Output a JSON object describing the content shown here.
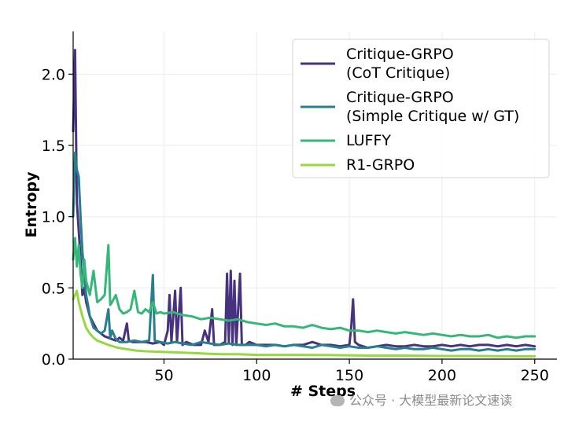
{
  "chart_data": {
    "type": "line",
    "xlabel": "# Steps",
    "ylabel": "Entropy",
    "xlim": [
      1,
      262
    ],
    "ylim": [
      0,
      2.3
    ],
    "xticks": [
      50,
      100,
      150,
      200,
      250
    ],
    "yticks": [
      0.0,
      0.5,
      1.0,
      1.5,
      2.0
    ],
    "xtick_labels": [
      "50",
      "100",
      "150",
      "200",
      "250"
    ],
    "ytick_labels": [
      "0.0",
      "0.5",
      "1.0",
      "1.5",
      "2.0"
    ],
    "grid": true,
    "legend_position": "top-right",
    "series": [
      {
        "name": "Critique-GRPO\n(CoT Critique)",
        "color": "#46327e",
        "points": [
          [
            1,
            1.6
          ],
          [
            2,
            2.17
          ],
          [
            3,
            1.1
          ],
          [
            4,
            0.9
          ],
          [
            5,
            0.7
          ],
          [
            6,
            0.45
          ],
          [
            7,
            0.5
          ],
          [
            8,
            0.4
          ],
          [
            9,
            0.35
          ],
          [
            10,
            0.3
          ],
          [
            12,
            0.25
          ],
          [
            14,
            0.2
          ],
          [
            16,
            0.18
          ],
          [
            18,
            0.16
          ],
          [
            20,
            0.15
          ],
          [
            22,
            0.14
          ],
          [
            24,
            0.13
          ],
          [
            26,
            0.15
          ],
          [
            28,
            0.13
          ],
          [
            30,
            0.25
          ],
          [
            31,
            0.13
          ],
          [
            33,
            0.12
          ],
          [
            36,
            0.12
          ],
          [
            40,
            0.12
          ],
          [
            44,
            0.11
          ],
          [
            48,
            0.12
          ],
          [
            50,
            0.1
          ],
          [
            52,
            0.2
          ],
          [
            53,
            0.45
          ],
          [
            54,
            0.12
          ],
          [
            56,
            0.48
          ],
          [
            57,
            0.12
          ],
          [
            59,
            0.5
          ],
          [
            60,
            0.1
          ],
          [
            62,
            0.12
          ],
          [
            66,
            0.1
          ],
          [
            70,
            0.1
          ],
          [
            72,
            0.2
          ],
          [
            74,
            0.12
          ],
          [
            76,
            0.35
          ],
          [
            77,
            0.1
          ],
          [
            80,
            0.1
          ],
          [
            83,
            0.12
          ],
          [
            84,
            0.6
          ],
          [
            85,
            0.12
          ],
          [
            86,
            0.62
          ],
          [
            87,
            0.1
          ],
          [
            88,
            0.55
          ],
          [
            89,
            0.1
          ],
          [
            91,
            0.6
          ],
          [
            92,
            0.1
          ],
          [
            94,
            0.1
          ],
          [
            96,
            0.12
          ],
          [
            100,
            0.1
          ],
          [
            105,
            0.1
          ],
          [
            110,
            0.1
          ],
          [
            115,
            0.09
          ],
          [
            120,
            0.1
          ],
          [
            125,
            0.1
          ],
          [
            130,
            0.12
          ],
          [
            135,
            0.1
          ],
          [
            140,
            0.1
          ],
          [
            145,
            0.09
          ],
          [
            150,
            0.1
          ],
          [
            151,
            0.22
          ],
          [
            152,
            0.42
          ],
          [
            153,
            0.12
          ],
          [
            155,
            0.1
          ],
          [
            160,
            0.08
          ],
          [
            165,
            0.09
          ],
          [
            170,
            0.1
          ],
          [
            175,
            0.09
          ],
          [
            180,
            0.09
          ],
          [
            185,
            0.1
          ],
          [
            190,
            0.09
          ],
          [
            195,
            0.09
          ],
          [
            200,
            0.1
          ],
          [
            205,
            0.09
          ],
          [
            210,
            0.1
          ],
          [
            215,
            0.09
          ],
          [
            220,
            0.1
          ],
          [
            225,
            0.1
          ],
          [
            230,
            0.09
          ],
          [
            235,
            0.1
          ],
          [
            240,
            0.09
          ],
          [
            245,
            0.1
          ],
          [
            250,
            0.09
          ]
        ]
      },
      {
        "name": "Critique-GRPO\n(Simple Critique w/ GT)",
        "color": "#277f8e",
        "points": [
          [
            1,
            1.0
          ],
          [
            2,
            1.45
          ],
          [
            3,
            1.33
          ],
          [
            4,
            1.28
          ],
          [
            5,
            1.0
          ],
          [
            6,
            0.75
          ],
          [
            7,
            0.6
          ],
          [
            8,
            0.45
          ],
          [
            9,
            0.38
          ],
          [
            10,
            0.3
          ],
          [
            12,
            0.22
          ],
          [
            14,
            0.2
          ],
          [
            16,
            0.18
          ],
          [
            18,
            0.2
          ],
          [
            20,
            0.35
          ],
          [
            21,
            0.15
          ],
          [
            22,
            0.2
          ],
          [
            24,
            0.14
          ],
          [
            26,
            0.12
          ],
          [
            30,
            0.12
          ],
          [
            34,
            0.13
          ],
          [
            38,
            0.12
          ],
          [
            42,
            0.13
          ],
          [
            44,
            0.59
          ],
          [
            45,
            0.13
          ],
          [
            48,
            0.12
          ],
          [
            52,
            0.11
          ],
          [
            56,
            0.12
          ],
          [
            60,
            0.11
          ],
          [
            65,
            0.1
          ],
          [
            70,
            0.12
          ],
          [
            75,
            0.11
          ],
          [
            80,
            0.1
          ],
          [
            85,
            0.11
          ],
          [
            90,
            0.1
          ],
          [
            95,
            0.1
          ],
          [
            100,
            0.1
          ],
          [
            105,
            0.09
          ],
          [
            110,
            0.1
          ],
          [
            115,
            0.09
          ],
          [
            120,
            0.1
          ],
          [
            125,
            0.09
          ],
          [
            130,
            0.08
          ],
          [
            135,
            0.1
          ],
          [
            140,
            0.09
          ],
          [
            145,
            0.08
          ],
          [
            150,
            0.09
          ],
          [
            155,
            0.08
          ],
          [
            160,
            0.08
          ],
          [
            165,
            0.09
          ],
          [
            170,
            0.08
          ],
          [
            175,
            0.07
          ],
          [
            180,
            0.08
          ],
          [
            185,
            0.07
          ],
          [
            190,
            0.07
          ],
          [
            195,
            0.08
          ],
          [
            200,
            0.07
          ],
          [
            205,
            0.06
          ],
          [
            210,
            0.07
          ],
          [
            215,
            0.07
          ],
          [
            220,
            0.06
          ],
          [
            225,
            0.07
          ],
          [
            230,
            0.06
          ],
          [
            235,
            0.07
          ],
          [
            240,
            0.06
          ],
          [
            245,
            0.07
          ],
          [
            250,
            0.07
          ]
        ]
      },
      {
        "name": "LUFFY",
        "color": "#35b779",
        "points": [
          [
            1,
            0.7
          ],
          [
            2,
            0.85
          ],
          [
            3,
            0.65
          ],
          [
            4,
            0.8
          ],
          [
            5,
            0.6
          ],
          [
            6,
            0.5
          ],
          [
            7,
            0.7
          ],
          [
            8,
            0.55
          ],
          [
            10,
            0.45
          ],
          [
            12,
            0.62
          ],
          [
            14,
            0.4
          ],
          [
            16,
            0.42
          ],
          [
            18,
            0.45
          ],
          [
            20,
            0.8
          ],
          [
            21,
            0.38
          ],
          [
            22,
            0.4
          ],
          [
            24,
            0.45
          ],
          [
            26,
            0.35
          ],
          [
            28,
            0.32
          ],
          [
            30,
            0.33
          ],
          [
            32,
            0.35
          ],
          [
            34,
            0.48
          ],
          [
            36,
            0.33
          ],
          [
            38,
            0.32
          ],
          [
            40,
            0.35
          ],
          [
            42,
            0.33
          ],
          [
            44,
            0.4
          ],
          [
            46,
            0.32
          ],
          [
            48,
            0.33
          ],
          [
            50,
            0.32
          ],
          [
            55,
            0.33
          ],
          [
            60,
            0.31
          ],
          [
            65,
            0.3
          ],
          [
            70,
            0.28
          ],
          [
            75,
            0.29
          ],
          [
            80,
            0.28
          ],
          [
            85,
            0.27
          ],
          [
            90,
            0.28
          ],
          [
            95,
            0.26
          ],
          [
            100,
            0.25
          ],
          [
            105,
            0.24
          ],
          [
            110,
            0.25
          ],
          [
            115,
            0.23
          ],
          [
            120,
            0.23
          ],
          [
            125,
            0.22
          ],
          [
            130,
            0.24
          ],
          [
            135,
            0.22
          ],
          [
            140,
            0.21
          ],
          [
            145,
            0.22
          ],
          [
            150,
            0.2
          ],
          [
            155,
            0.2
          ],
          [
            160,
            0.19
          ],
          [
            165,
            0.2
          ],
          [
            170,
            0.19
          ],
          [
            175,
            0.18
          ],
          [
            180,
            0.19
          ],
          [
            185,
            0.18
          ],
          [
            190,
            0.17
          ],
          [
            195,
            0.18
          ],
          [
            200,
            0.17
          ],
          [
            205,
            0.16
          ],
          [
            210,
            0.17
          ],
          [
            215,
            0.16
          ],
          [
            220,
            0.16
          ],
          [
            225,
            0.17
          ],
          [
            230,
            0.15
          ],
          [
            235,
            0.16
          ],
          [
            240,
            0.15
          ],
          [
            245,
            0.16
          ],
          [
            250,
            0.16
          ]
        ]
      },
      {
        "name": "R1-GRPO",
        "color": "#95d840",
        "points": [
          [
            1,
            0.42
          ],
          [
            2,
            0.45
          ],
          [
            3,
            0.48
          ],
          [
            4,
            0.4
          ],
          [
            5,
            0.35
          ],
          [
            6,
            0.3
          ],
          [
            8,
            0.22
          ],
          [
            10,
            0.18
          ],
          [
            12,
            0.15
          ],
          [
            14,
            0.13
          ],
          [
            16,
            0.12
          ],
          [
            18,
            0.11
          ],
          [
            20,
            0.1
          ],
          [
            25,
            0.08
          ],
          [
            30,
            0.07
          ],
          [
            35,
            0.06
          ],
          [
            40,
            0.055
          ],
          [
            50,
            0.05
          ],
          [
            60,
            0.045
          ],
          [
            70,
            0.04
          ],
          [
            80,
            0.035
          ],
          [
            90,
            0.035
          ],
          [
            100,
            0.03
          ],
          [
            120,
            0.03
          ],
          [
            140,
            0.028
          ],
          [
            160,
            0.025
          ],
          [
            180,
            0.025
          ],
          [
            200,
            0.022
          ],
          [
            220,
            0.022
          ],
          [
            240,
            0.02
          ],
          [
            250,
            0.02
          ]
        ]
      }
    ]
  },
  "watermark": {
    "text": "公众号 · 大模型最新论文速读",
    "icon": "wechat-icon"
  }
}
